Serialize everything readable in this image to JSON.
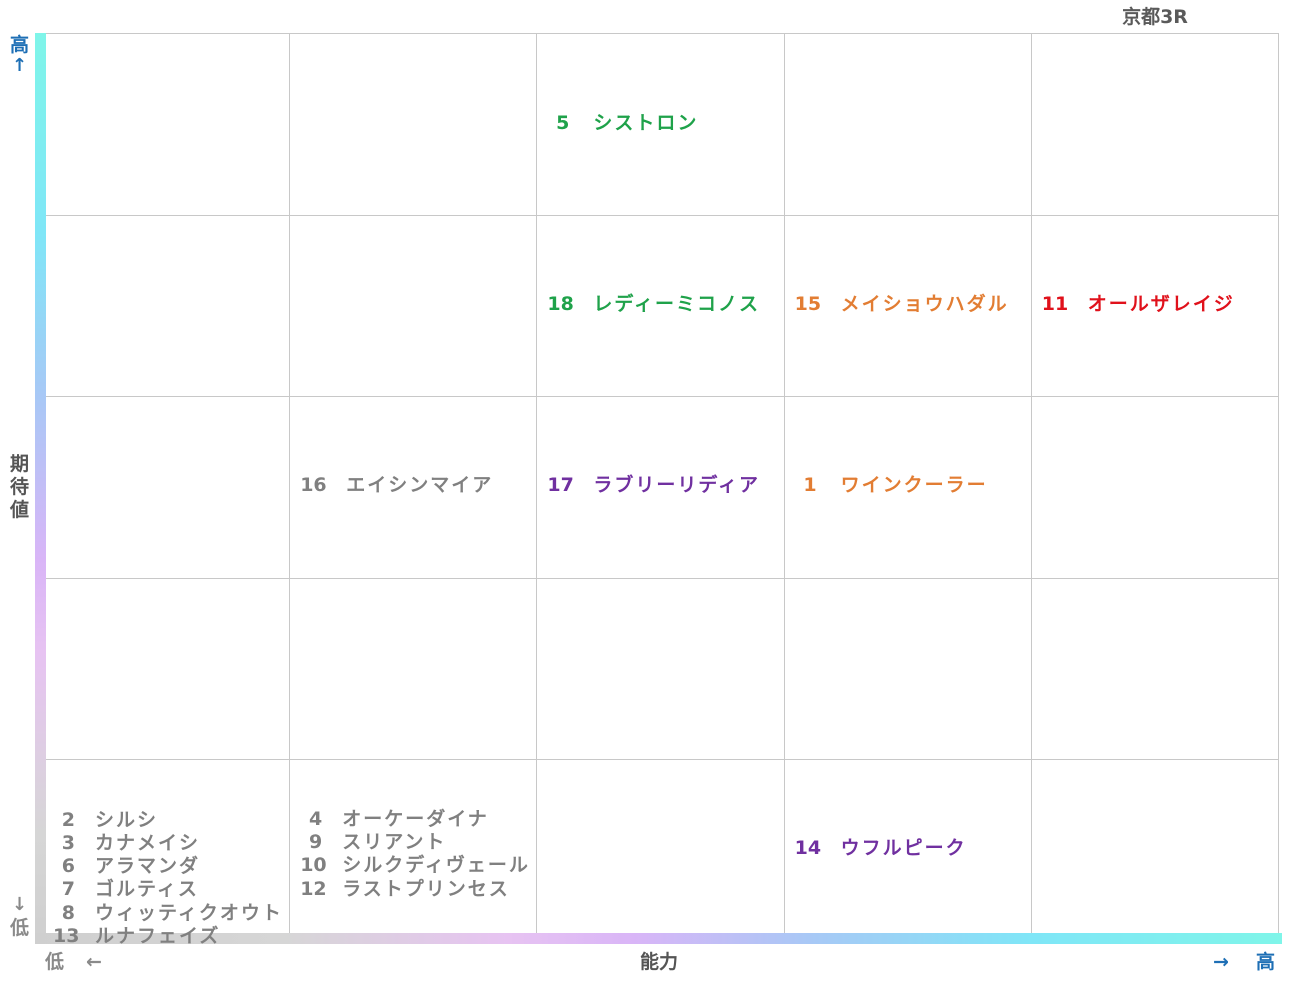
{
  "title": "京都3R",
  "y_axis": {
    "label": "期\n待\n値",
    "high": "高",
    "high_arrow": "↑",
    "low_arrow": "↓",
    "low": "低"
  },
  "x_axis": {
    "label": "能力",
    "low": "低",
    "low_arrow": "←",
    "high_arrow": "→",
    "high": "高"
  },
  "colors": {
    "green": "#1fa24a",
    "orange": "#e27d33",
    "red": "#e0111b",
    "purple": "#7030a0",
    "grey": "#808080"
  },
  "chart_data": {
    "type": "table",
    "title": "京都3R",
    "xlabel": "能力",
    "ylabel": "期待値",
    "columns": 5,
    "rows": 5,
    "cells": [
      {
        "col": 3,
        "row": 5,
        "color": "#1fa24a",
        "horses": [
          {
            "num": "5",
            "name": "シストロン"
          }
        ]
      },
      {
        "col": 3,
        "row": 4,
        "color": "#1fa24a",
        "horses": [
          {
            "num": "18",
            "name": "レディーミコノス"
          }
        ]
      },
      {
        "col": 4,
        "row": 4,
        "color": "#e27d33",
        "horses": [
          {
            "num": "15",
            "name": "メイショウハダル"
          }
        ]
      },
      {
        "col": 5,
        "row": 4,
        "color": "#e0111b",
        "horses": [
          {
            "num": "11",
            "name": "オールザレイジ"
          }
        ]
      },
      {
        "col": 2,
        "row": 3,
        "color": "#808080",
        "horses": [
          {
            "num": "16",
            "name": "エイシンマイア"
          }
        ]
      },
      {
        "col": 3,
        "row": 3,
        "color": "#7030a0",
        "horses": [
          {
            "num": "17",
            "name": "ラブリーリディア"
          }
        ]
      },
      {
        "col": 4,
        "row": 3,
        "color": "#e27d33",
        "horses": [
          {
            "num": "1",
            "name": "ワインクーラー"
          }
        ]
      },
      {
        "col": 1,
        "row": 1,
        "color": "#808080",
        "horses": [
          {
            "num": "2",
            "name": "シルシ"
          },
          {
            "num": "3",
            "name": "カナメイシ"
          },
          {
            "num": "6",
            "name": "アラマンダ"
          },
          {
            "num": "7",
            "name": "ゴルティス"
          },
          {
            "num": "8",
            "name": "ウィッティクオウト"
          },
          {
            "num": "13",
            "name": "ルナフェイズ"
          }
        ]
      },
      {
        "col": 2,
        "row": 1,
        "color": "#808080",
        "horses": [
          {
            "num": "4",
            "name": "オーケーダイナ"
          },
          {
            "num": "9",
            "name": "スリアント"
          },
          {
            "num": "10",
            "name": "シルクディヴェール"
          },
          {
            "num": "12",
            "name": "ラストプリンセス"
          }
        ]
      },
      {
        "col": 4,
        "row": 1,
        "color": "#7030a0",
        "horses": [
          {
            "num": "14",
            "name": "ウフルピーク"
          }
        ]
      }
    ]
  }
}
